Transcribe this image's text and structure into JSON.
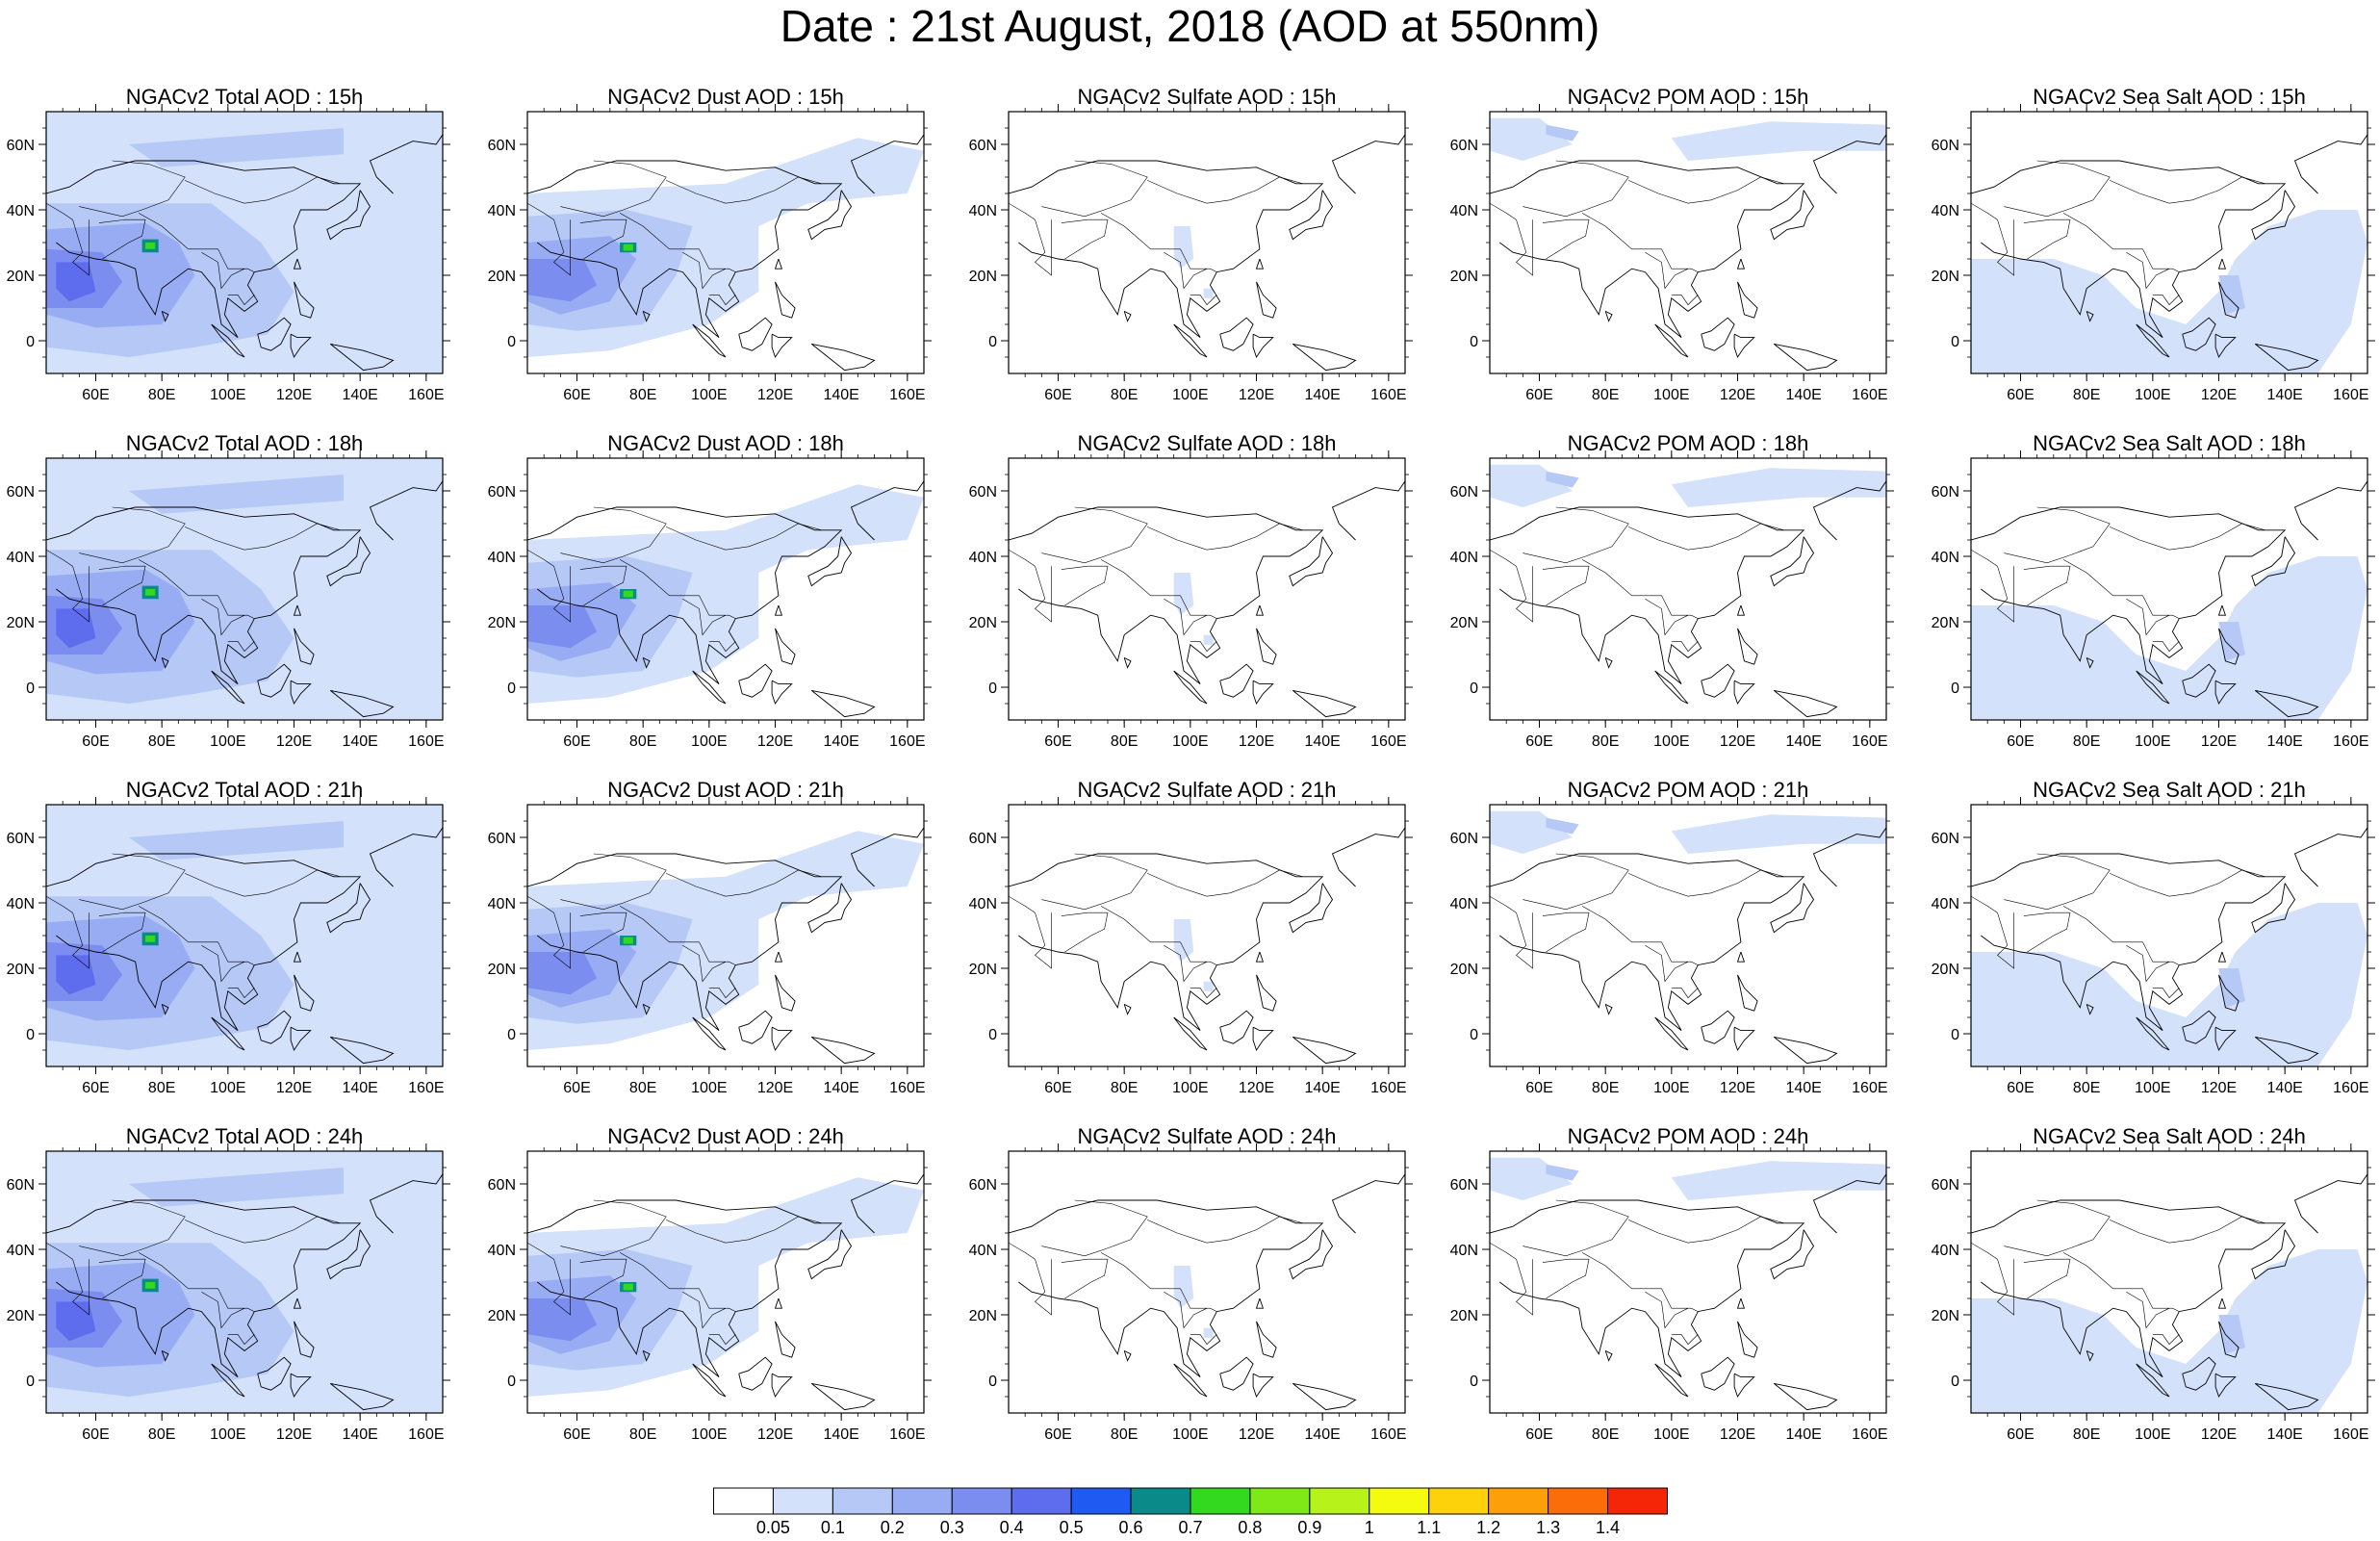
{
  "title": "Date : 21st August, 2018 (AOD at 550nm)",
  "colors": {
    "palette": [
      "#ffffff",
      "#d4e1fb",
      "#b6c8f6",
      "#98acf3",
      "#7b8ef0",
      "#5e6ded",
      "#1f5bf2",
      "#0b8a8a",
      "#33d91f",
      "#7fe817",
      "#b7f21a",
      "#f5fb0e",
      "#fdd20b",
      "#fd9f08",
      "#fb6d09",
      "#f52507"
    ]
  },
  "colorbar": {
    "labels": [
      "0.05",
      "0.1",
      "0.2",
      "0.3",
      "0.4",
      "0.5",
      "0.6",
      "0.7",
      "0.8",
      "0.9",
      "1",
      "1.1",
      "1.2",
      "1.3",
      "1.4"
    ]
  },
  "axes": {
    "lon_labels": [
      "60E",
      "80E",
      "100E",
      "120E",
      "140E",
      "160E"
    ],
    "lat_labels": [
      "60N",
      "40N",
      "20N",
      "0"
    ]
  },
  "panels": [
    {
      "title": "NGACv2 Total AOD : 15h",
      "field": "total"
    },
    {
      "title": "NGACv2 Dust AOD : 15h",
      "field": "dust"
    },
    {
      "title": "NGACv2 Sulfate AOD : 15h",
      "field": "sulfate"
    },
    {
      "title": "NGACv2 POM AOD : 15h",
      "field": "pom"
    },
    {
      "title": "NGACv2 Sea Salt AOD : 15h",
      "field": "seasalt"
    },
    {
      "title": "NGACv2 Total AOD : 18h",
      "field": "total"
    },
    {
      "title": "NGACv2 Dust AOD : 18h",
      "field": "dust"
    },
    {
      "title": "NGACv2 Sulfate AOD : 18h",
      "field": "sulfate"
    },
    {
      "title": "NGACv2 POM AOD : 18h",
      "field": "pom"
    },
    {
      "title": "NGACv2 Sea Salt AOD : 18h",
      "field": "seasalt"
    },
    {
      "title": "NGACv2 Total AOD : 21h",
      "field": "total"
    },
    {
      "title": "NGACv2 Dust AOD : 21h",
      "field": "dust"
    },
    {
      "title": "NGACv2 Sulfate AOD : 21h",
      "field": "sulfate"
    },
    {
      "title": "NGACv2 POM AOD : 21h",
      "field": "pom"
    },
    {
      "title": "NGACv2 Sea Salt AOD : 21h",
      "field": "seasalt"
    },
    {
      "title": "NGACv2 Total AOD : 24h",
      "field": "total"
    },
    {
      "title": "NGACv2 Dust AOD : 24h",
      "field": "dust"
    },
    {
      "title": "NGACv2 Sulfate AOD : 24h",
      "field": "sulfate"
    },
    {
      "title": "NGACv2 POM AOD : 24h",
      "field": "pom"
    },
    {
      "title": "NGACv2 Sea Salt  AOD : 24h",
      "field": "seasalt"
    }
  ]
}
